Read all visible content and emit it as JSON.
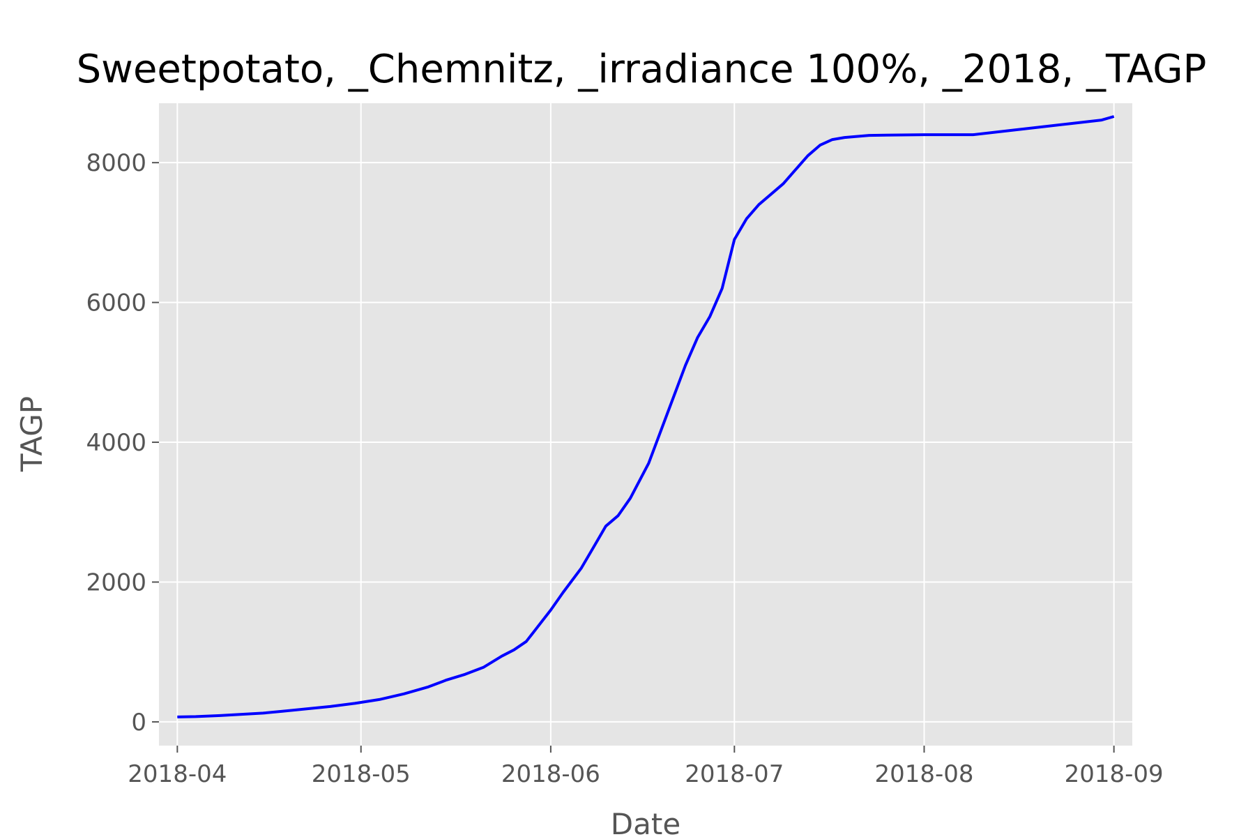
{
  "chart_data": {
    "type": "line",
    "title": "Sweetpotato, _Chemnitz, _irradiance 100%, _2018, _TAGP",
    "xlabel": "Date",
    "ylabel": "TAGP",
    "x_ticks": [
      "2018-04",
      "2018-05",
      "2018-06",
      "2018-07",
      "2018-08",
      "2018-09"
    ],
    "y_ticks": [
      0,
      2000,
      4000,
      6000,
      8000
    ],
    "xlim": [
      "2018-03-29",
      "2018-09-04"
    ],
    "ylim": [
      -340,
      8850
    ],
    "grid": true,
    "colors": {
      "background": "#E5E5E5",
      "grid": "#FFFFFF",
      "line": "#0000FF"
    },
    "series": [
      {
        "x": [
          "2018-04-01",
          "2018-04-04",
          "2018-04-08",
          "2018-04-12",
          "2018-04-15",
          "2018-04-18",
          "2018-04-22",
          "2018-04-26",
          "2018-04-30",
          "2018-05-04",
          "2018-05-08",
          "2018-05-12",
          "2018-05-15",
          "2018-05-18",
          "2018-05-21",
          "2018-05-24",
          "2018-05-26",
          "2018-05-28",
          "2018-06-01",
          "2018-06-03",
          "2018-06-06",
          "2018-06-08",
          "2018-06-10",
          "2018-06-12",
          "2018-06-14",
          "2018-06-17",
          "2018-06-20",
          "2018-06-23",
          "2018-06-25",
          "2018-06-27",
          "2018-06-29",
          "2018-07-01",
          "2018-07-03",
          "2018-07-05",
          "2018-07-07",
          "2018-07-09",
          "2018-07-11",
          "2018-07-13",
          "2018-07-15",
          "2018-07-17",
          "2018-07-19",
          "2018-07-23",
          "2018-08-01",
          "2018-08-09",
          "2018-08-15",
          "2018-08-20",
          "2018-08-25",
          "2018-08-30",
          "2018-09-01"
        ],
        "y": [
          70,
          75,
          90,
          110,
          125,
          150,
          185,
          220,
          265,
          320,
          400,
          500,
          600,
          680,
          780,
          940,
          1030,
          1150,
          1600,
          1850,
          2200,
          2500,
          2800,
          2950,
          3200,
          3700,
          4400,
          5100,
          5500,
          5800,
          6200,
          6900,
          7200,
          7400,
          7550,
          7700,
          7900,
          8100,
          8250,
          8330,
          8360,
          8390,
          8400,
          8400,
          8460,
          8510,
          8560,
          8610,
          8660
        ]
      }
    ]
  }
}
